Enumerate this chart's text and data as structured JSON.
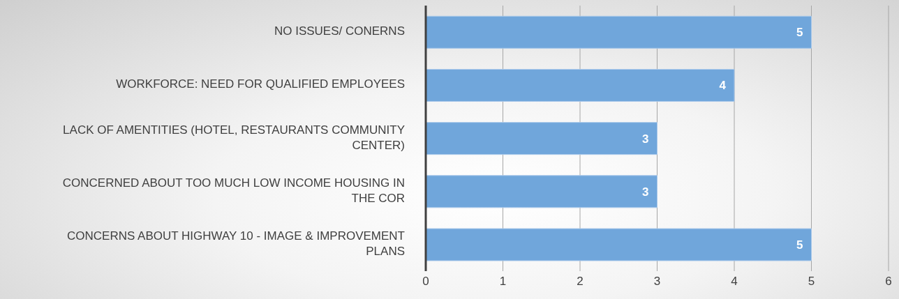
{
  "chart_data": {
    "type": "bar",
    "orientation": "horizontal",
    "categories": [
      "NO ISSUES/ CONERNS",
      "WORKFORCE: NEED FOR QUALIFIED EMPLOYEES",
      "LACK OF AMENTITIES (HOTEL, RESTAURANTS COMMUNITY CENTER)",
      "CONCERNED ABOUT TOO MUCH LOW INCOME HOUSING IN THE COR",
      "CONCERNS ABOUT HIGHWAY 10 - IMAGE & IMPROVEMENT PLANS"
    ],
    "values": [
      5,
      4,
      3,
      3,
      5
    ],
    "color": "#70a6db",
    "xlim": [
      0,
      6
    ],
    "xticks": [
      0,
      1,
      2,
      3,
      4,
      5,
      6
    ],
    "grid": "x",
    "data_labels": true
  }
}
